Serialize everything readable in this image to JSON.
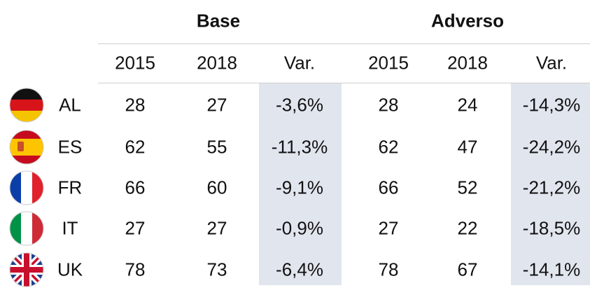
{
  "header": {
    "groups": [
      "Base",
      "Adverso"
    ],
    "columns": [
      "2015",
      "2018",
      "Var.",
      "2015",
      "2018",
      "Var."
    ]
  },
  "table": {
    "rows": [
      {
        "country": "AL",
        "cells": [
          "28",
          "27",
          "-3,6%",
          "28",
          "24",
          "-14,3%"
        ]
      },
      {
        "country": "ES",
        "cells": [
          "62",
          "55",
          "-11,3%",
          "62",
          "47",
          "-24,2%"
        ]
      },
      {
        "country": "FR",
        "cells": [
          "66",
          "60",
          "-9,1%",
          "66",
          "52",
          "-21,2%"
        ]
      },
      {
        "country": "IT",
        "cells": [
          "27",
          "27",
          "-0,9%",
          "27",
          "22",
          "-18,5%"
        ]
      },
      {
        "country": "UK",
        "cells": [
          "78",
          "73",
          "-6,4%",
          "78",
          "67",
          "-14,1%"
        ]
      }
    ]
  }
}
